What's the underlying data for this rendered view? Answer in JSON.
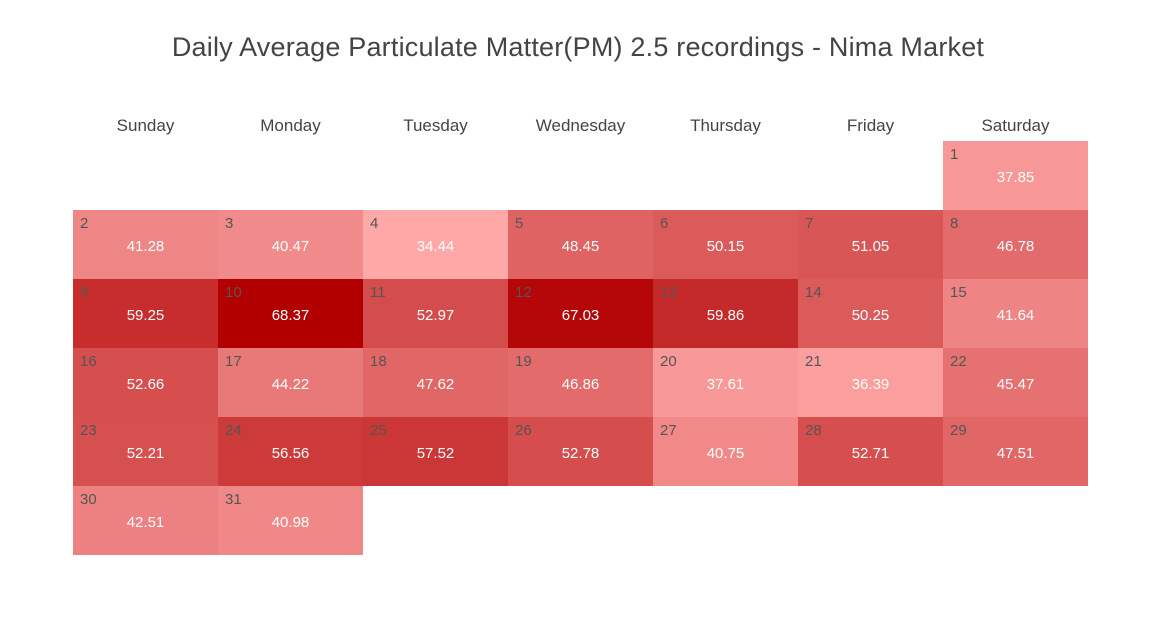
{
  "chart_data": {
    "type": "heatmap",
    "title": "Daily Average Particulate Matter(PM) 2.5 recordings - Nima Market",
    "weekdays": [
      "Sunday",
      "Monday",
      "Tuesday",
      "Wednesday",
      "Thursday",
      "Friday",
      "Saturday"
    ],
    "first_day_weekday_index": 6,
    "days": [
      {
        "day": 1,
        "value": 37.85
      },
      {
        "day": 2,
        "value": 41.28
      },
      {
        "day": 3,
        "value": 40.47
      },
      {
        "day": 4,
        "value": 34.44
      },
      {
        "day": 5,
        "value": 48.45
      },
      {
        "day": 6,
        "value": 50.15
      },
      {
        "day": 7,
        "value": 51.05
      },
      {
        "day": 8,
        "value": 46.78
      },
      {
        "day": 9,
        "value": 59.25
      },
      {
        "day": 10,
        "value": 68.37
      },
      {
        "day": 11,
        "value": 52.97
      },
      {
        "day": 12,
        "value": 67.03
      },
      {
        "day": 13,
        "value": 59.86
      },
      {
        "day": 14,
        "value": 50.25
      },
      {
        "day": 15,
        "value": 41.64
      },
      {
        "day": 16,
        "value": 52.66
      },
      {
        "day": 17,
        "value": 44.22
      },
      {
        "day": 18,
        "value": 47.62
      },
      {
        "day": 19,
        "value": 46.86
      },
      {
        "day": 20,
        "value": 37.61
      },
      {
        "day": 21,
        "value": 36.39
      },
      {
        "day": 22,
        "value": 45.47
      },
      {
        "day": 23,
        "value": 52.21
      },
      {
        "day": 24,
        "value": 56.56
      },
      {
        "day": 25,
        "value": 57.52
      },
      {
        "day": 26,
        "value": 52.78
      },
      {
        "day": 27,
        "value": 40.75
      },
      {
        "day": 28,
        "value": 52.71
      },
      {
        "day": 29,
        "value": 47.51
      },
      {
        "day": 30,
        "value": 42.51
      },
      {
        "day": 31,
        "value": 40.98
      }
    ],
    "color_scale": {
      "low_color": "#ffa8a8",
      "high_color": "#b20000"
    }
  }
}
